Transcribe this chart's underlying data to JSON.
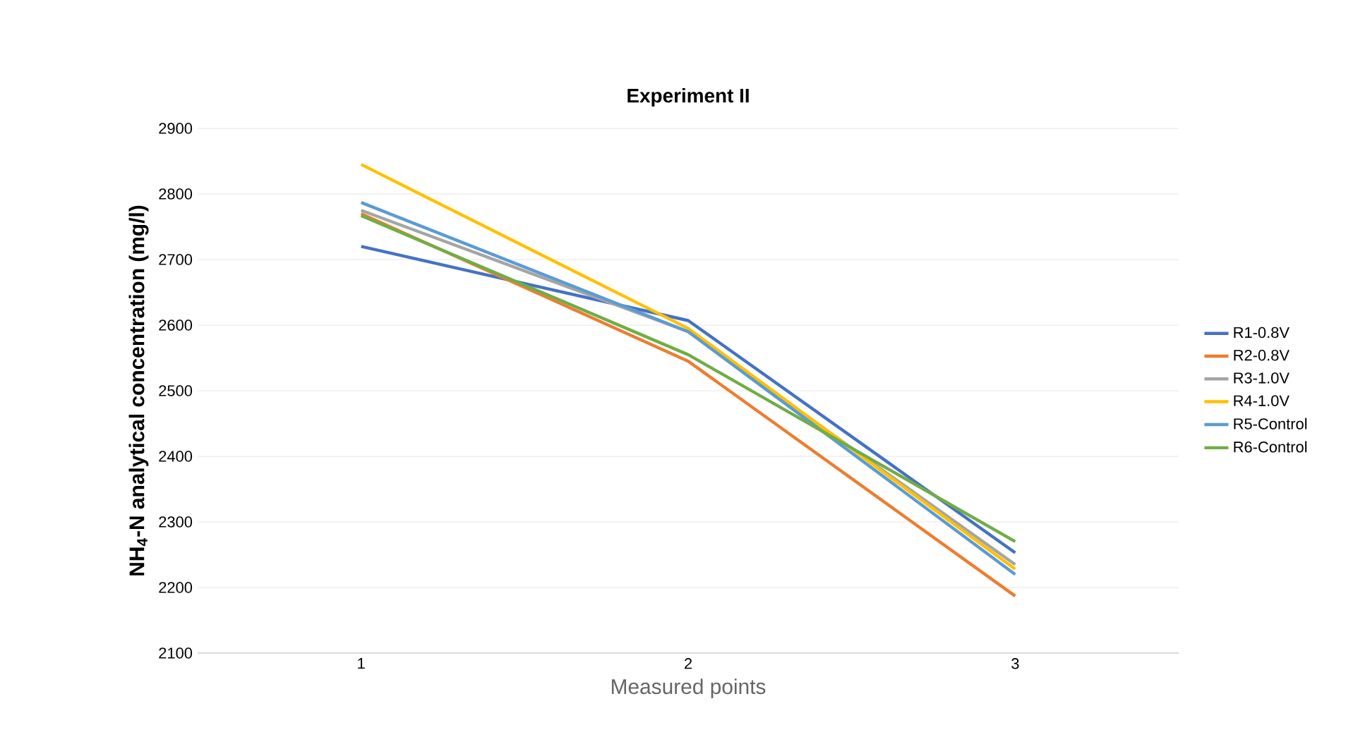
{
  "chart_data": {
    "type": "line",
    "title": "Experiment II",
    "xlabel": "Measured points",
    "ylabel": "NH$_{4}$-N analytical concentration (mg/l)",
    "categories": [
      "1",
      "2",
      "3"
    ],
    "series": [
      {
        "name": "R1-0.8V",
        "color": "#4472c4",
        "values": [
          2720,
          2607,
          2253
        ]
      },
      {
        "name": "R2-0.8V",
        "color": "#ed7d31",
        "values": [
          2770,
          2545,
          2187
        ]
      },
      {
        "name": "R3-1.0V",
        "color": "#a5a5a5",
        "values": [
          2775,
          2590,
          2235
        ]
      },
      {
        "name": "R4-1.0V",
        "color": "#ffc000",
        "values": [
          2845,
          2595,
          2228
        ]
      },
      {
        "name": "R5-Control",
        "color": "#5b9bd5",
        "values": [
          2787,
          2590,
          2220
        ]
      },
      {
        "name": "R6-Control",
        "color": "#70ad47",
        "values": [
          2767,
          2555,
          2270
        ]
      }
    ],
    "ylim": [
      2100,
      2900
    ],
    "yticks": [
      2100,
      2200,
      2300,
      2400,
      2500,
      2600,
      2700,
      2800,
      2900
    ],
    "grid": "y",
    "legend": "right",
    "marker": "none",
    "line_style": "solid"
  }
}
